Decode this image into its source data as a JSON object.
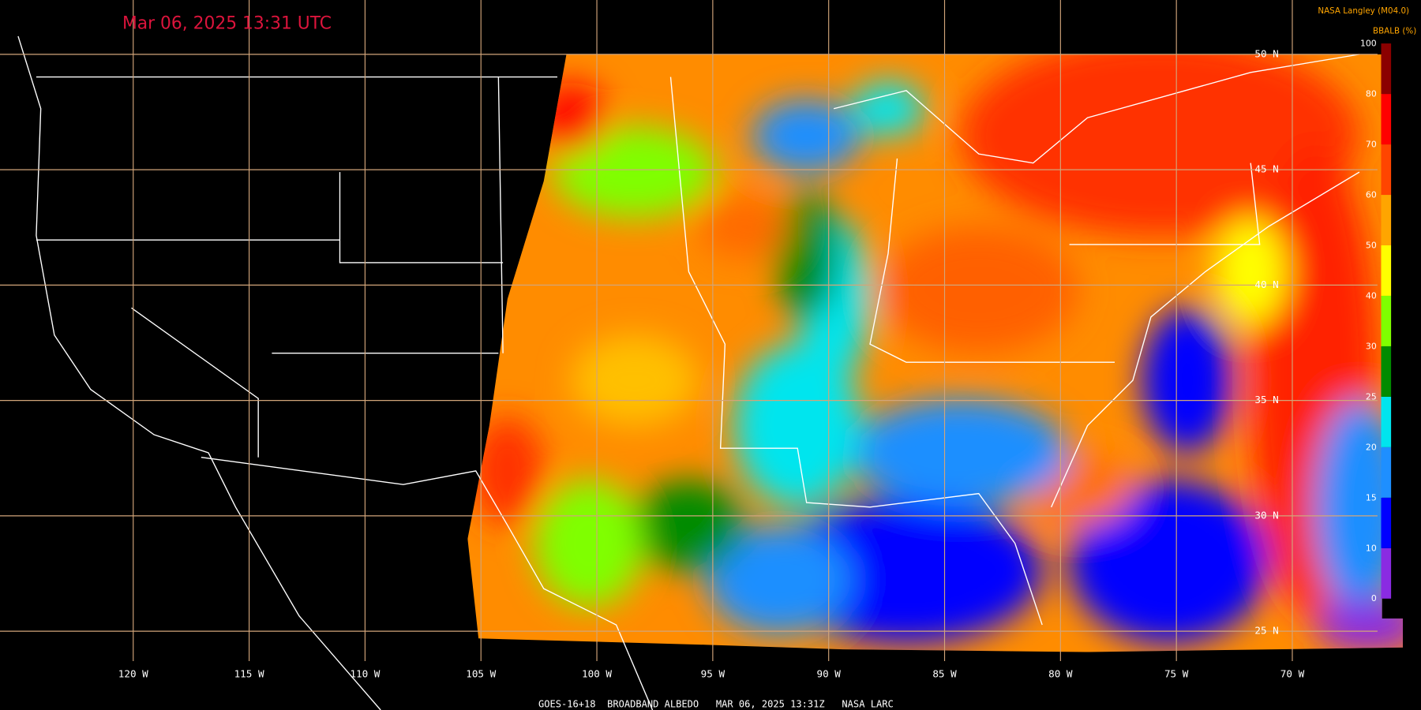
{
  "header": {
    "timestamp": "Mar 06, 2025 13:31 UTC",
    "source": "NASA Langley (M04.0)"
  },
  "colorbar": {
    "title": "BBALB (%)",
    "ticks": [
      0,
      10,
      15,
      20,
      25,
      30,
      40,
      50,
      60,
      70,
      80,
      100
    ],
    "colors": [
      "#8a2be2",
      "#0000ff",
      "#1e8fff",
      "#00e5ee",
      "#008b00",
      "#7fff00",
      "#ffff00",
      "#ffa500",
      "#ff4500",
      "#ff0000",
      "#8b0000"
    ]
  },
  "map": {
    "longitudes": [
      "120 W",
      "115 W",
      "110 W",
      "105 W",
      "100 W",
      "95 W",
      "90 W",
      "85 W",
      "80 W",
      "75 W",
      "70 W"
    ],
    "latitudes": [
      "50 N",
      "45 N",
      "40 N",
      "35 N",
      "30 N",
      "25 N"
    ]
  },
  "footer": "GOES-16+18  BROADBAND ALBEDO   MAR 06, 2025 13:31Z   NASA LARC"
}
